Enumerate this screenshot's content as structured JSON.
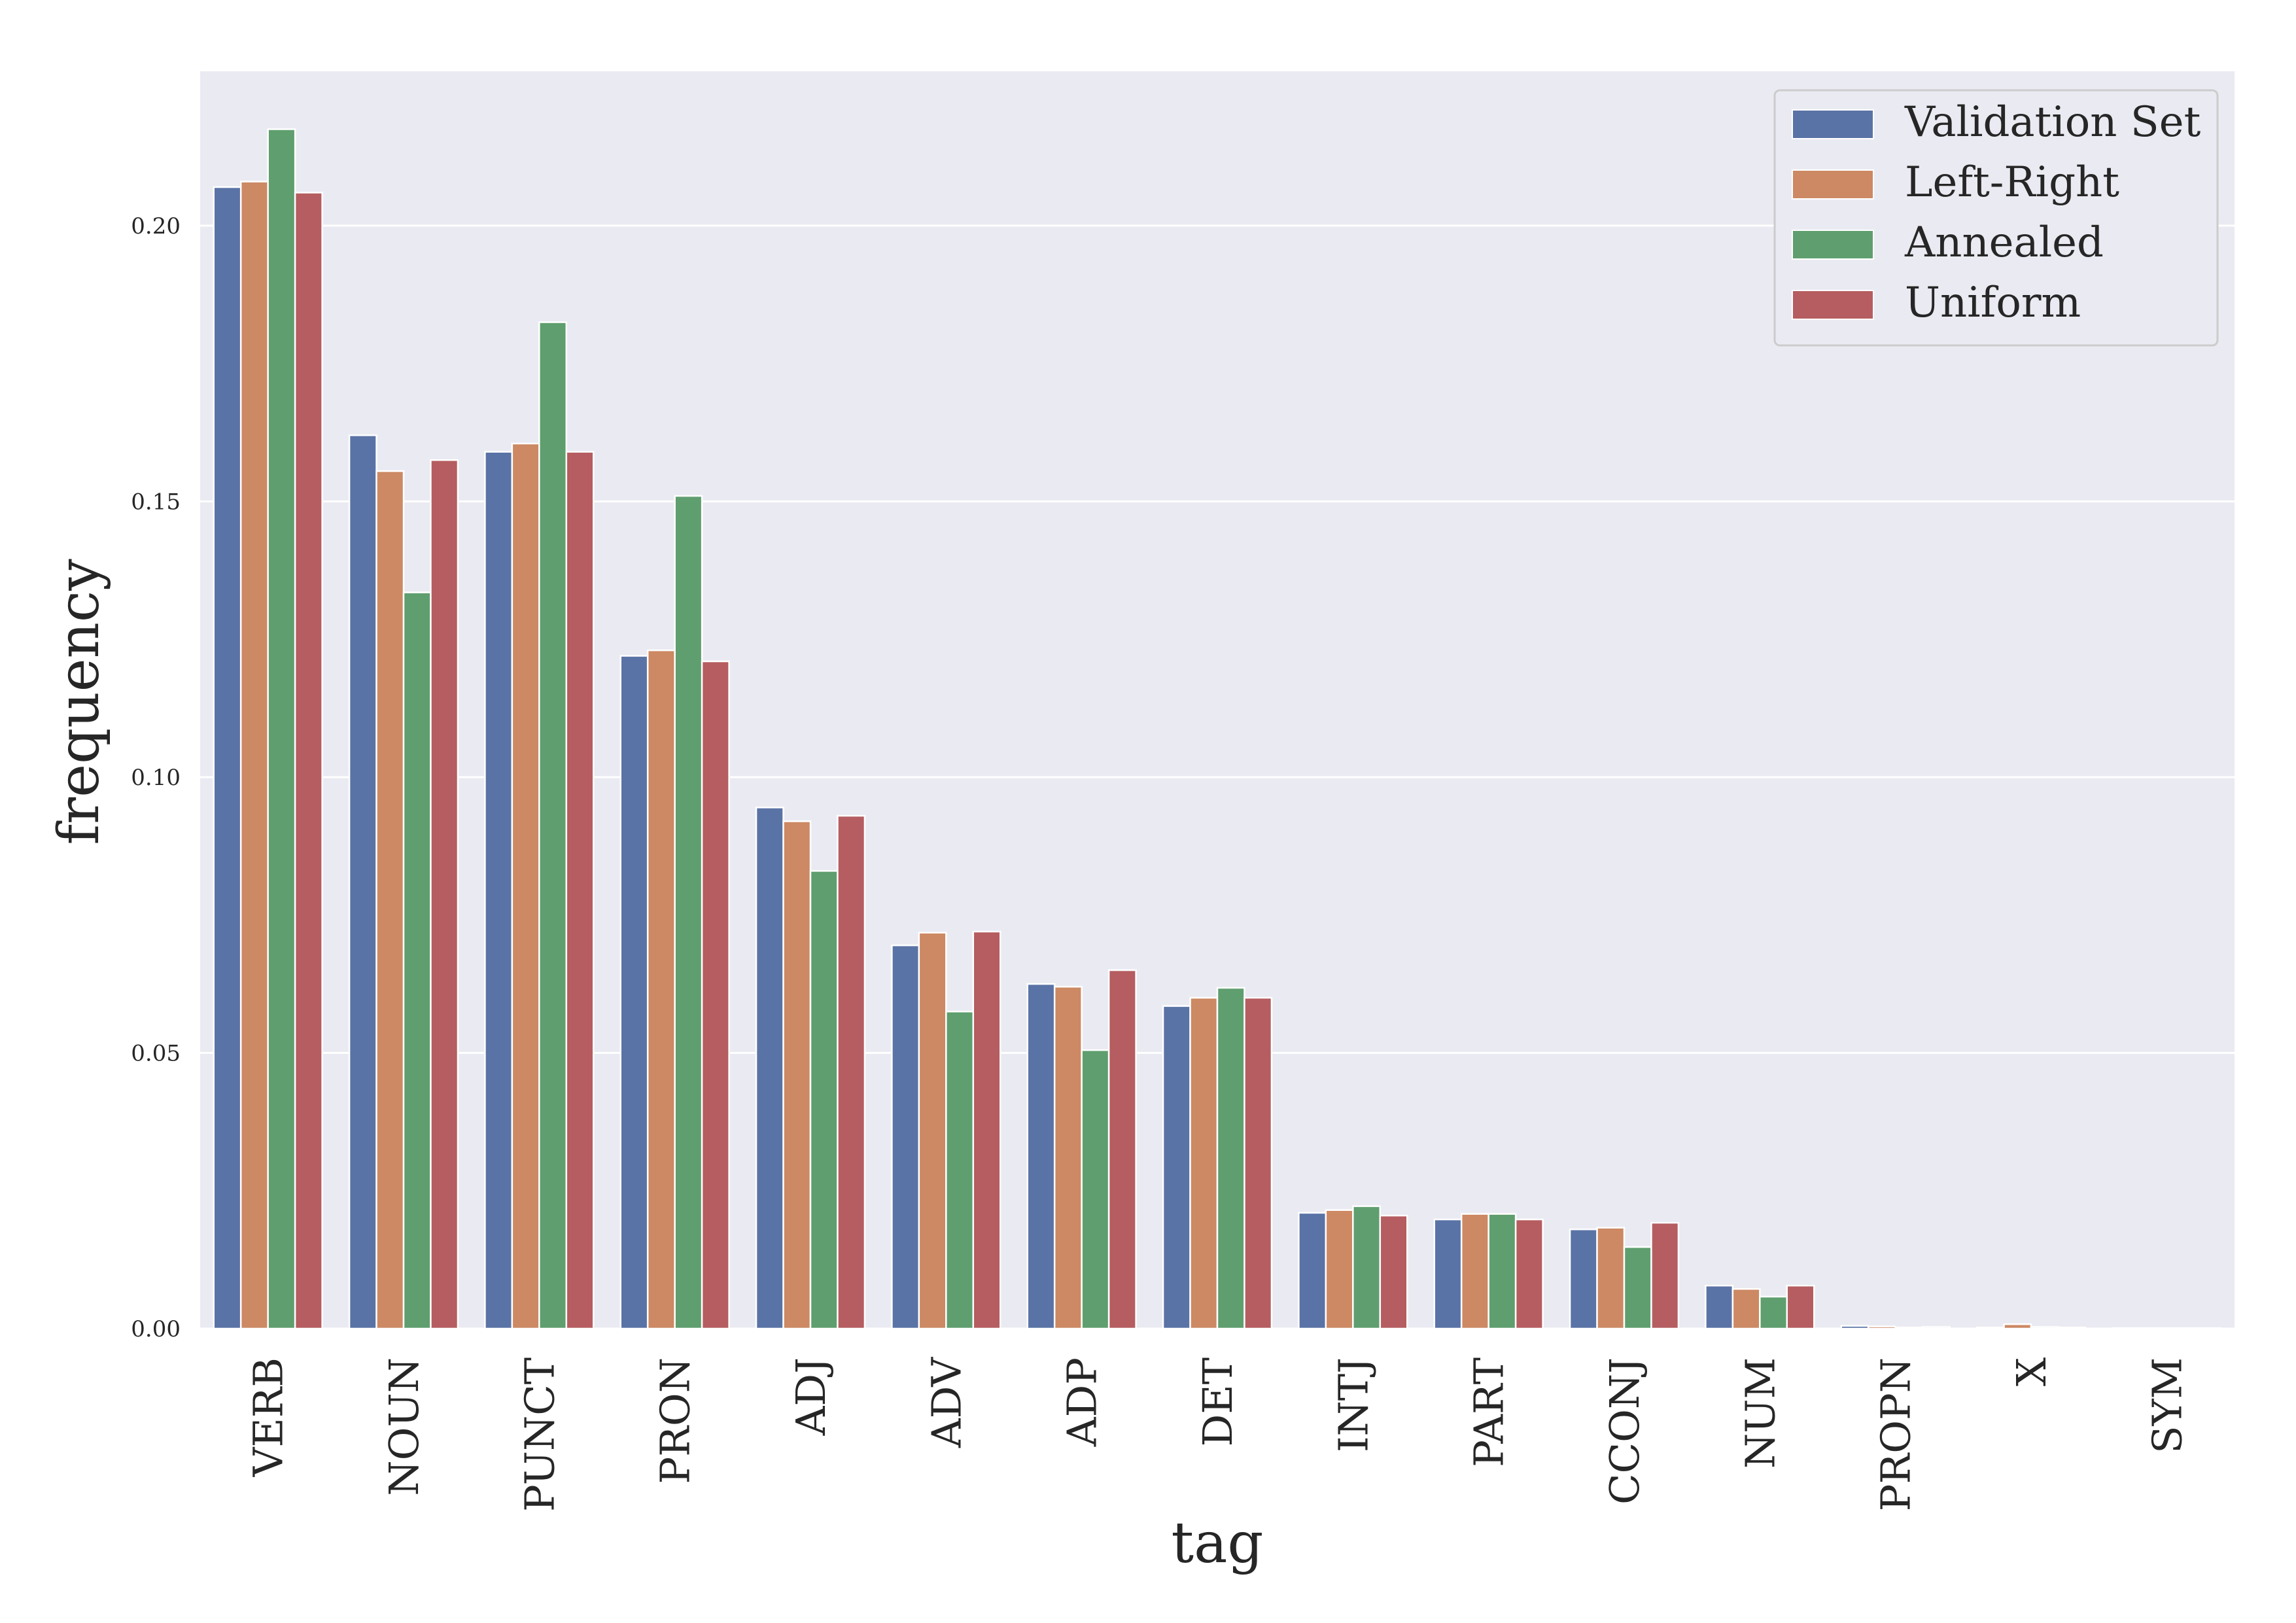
{
  "chart_data": {
    "type": "bar",
    "title": "",
    "xlabel": "tag",
    "ylabel": "frequency",
    "ylim": [
      0,
      0.228
    ],
    "yticks": [
      0.0,
      0.05,
      0.1,
      0.15,
      0.2
    ],
    "grid": true,
    "legend_position": "top-right",
    "categories": [
      "VERB",
      "NOUN",
      "PUNCT",
      "PRON",
      "ADJ",
      "ADV",
      "ADP",
      "DET",
      "INTJ",
      "PART",
      "CCONJ",
      "NUM",
      "PROPN",
      "X",
      "SYM"
    ],
    "series": [
      {
        "name": "Validation Set",
        "color": "#5a73a6",
        "values": [
          0.207,
          0.162,
          0.159,
          0.122,
          0.0945,
          0.0695,
          0.0625,
          0.0585,
          0.021,
          0.0198,
          0.018,
          0.0078,
          0.0005,
          0.0002,
          0.0001
        ]
      },
      {
        "name": "Left-Right",
        "color": "#cc8963",
        "values": [
          0.208,
          0.1555,
          0.1605,
          0.123,
          0.092,
          0.0718,
          0.062,
          0.06,
          0.0215,
          0.0208,
          0.0183,
          0.0072,
          0.0004,
          0.0008,
          0.0001
        ]
      },
      {
        "name": "Annealed",
        "color": "#5f9e6e",
        "values": [
          0.2175,
          0.1335,
          0.1825,
          0.151,
          0.083,
          0.0575,
          0.0505,
          0.0618,
          0.0222,
          0.0208,
          0.0148,
          0.0058,
          0.0002,
          0.0003,
          0.0001
        ]
      },
      {
        "name": "Uniform",
        "color": "#b55d60",
        "values": [
          0.206,
          0.1575,
          0.159,
          0.121,
          0.093,
          0.072,
          0.065,
          0.06,
          0.0205,
          0.0198,
          0.0192,
          0.0078,
          0.0003,
          0.0002,
          0.0001
        ]
      }
    ]
  },
  "ytick_labels": [
    "0.00",
    "0.05",
    "0.10",
    "0.15",
    "0.20"
  ]
}
